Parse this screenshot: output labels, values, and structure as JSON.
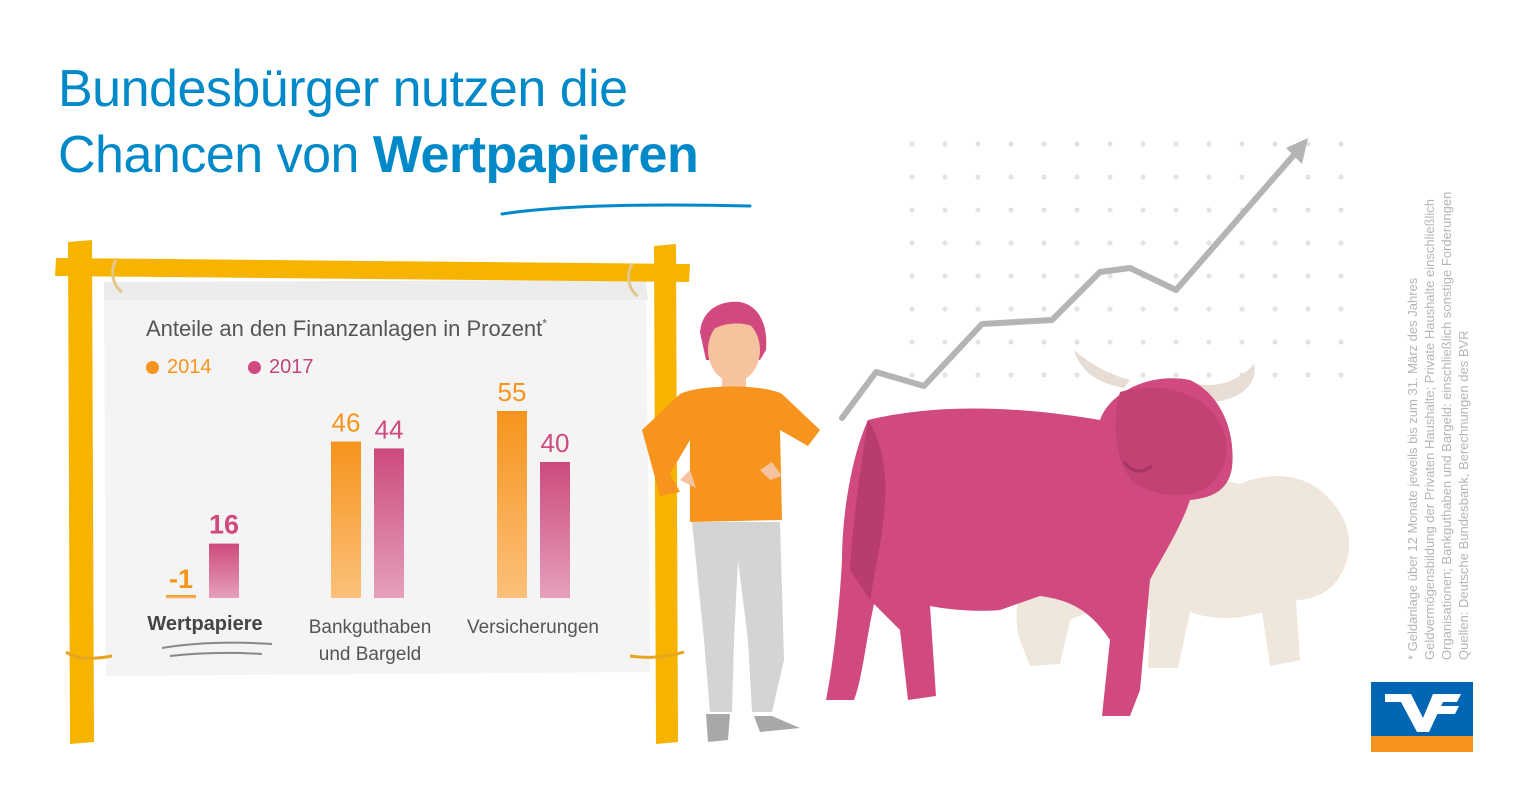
{
  "title": {
    "line1": "Bundesbürger nutzen die",
    "line2_prefix": "Chancen von ",
    "line2_bold": "Wertpapieren"
  },
  "chart_data": {
    "type": "bar",
    "title": "Anteile an den Finanzanlagen in Prozent",
    "title_marker": "*",
    "categories": [
      "Wertpapiere",
      "Bankguthaben und Bargeld",
      "Versicherungen"
    ],
    "category_lines": [
      [
        "Wertpapiere"
      ],
      [
        "Bankguthaben",
        "und Bargeld"
      ],
      [
        "Versicherungen"
      ]
    ],
    "series": [
      {
        "name": "2014",
        "values": [
          -1,
          46,
          55
        ],
        "labels": [
          "-1",
          "46",
          "55"
        ],
        "color": "#f7941d"
      },
      {
        "name": "2017",
        "values": [
          16,
          44,
          40
        ],
        "labels": [
          "16",
          "44",
          "40"
        ],
        "color": "#d0497f"
      }
    ],
    "ylim": [
      0,
      55
    ],
    "legend_placement": "top-left",
    "grid": false,
    "highlighted_category": "Wertpapiere"
  },
  "footnote": {
    "line1": "* Geldanlage über 12 Monate jeweils bis zum 31. März des Jahres",
    "line2": "Geldvermögensbildung der Privaten Haushalte; Private Haushalte einschließlich",
    "line3": "Organisationen; Bankguthaben und Bargeld: einschließlich sonstige Forderungen",
    "line4": "Quellen: Deutsche Bundesbank, Berechnungen des BVR"
  },
  "colors": {
    "title_blue": "#0089c9",
    "frame_yellow": "#f6b400",
    "orange": "#f7941d",
    "pink": "#d0497f",
    "bear_beige": "#efe6dc",
    "arrow_grey": "#b4b4b4"
  },
  "icons": [
    "wooden-board-frame",
    "woman-figure",
    "bull-figure",
    "bear-figure",
    "rising-trend-arrow",
    "bank-logo"
  ]
}
